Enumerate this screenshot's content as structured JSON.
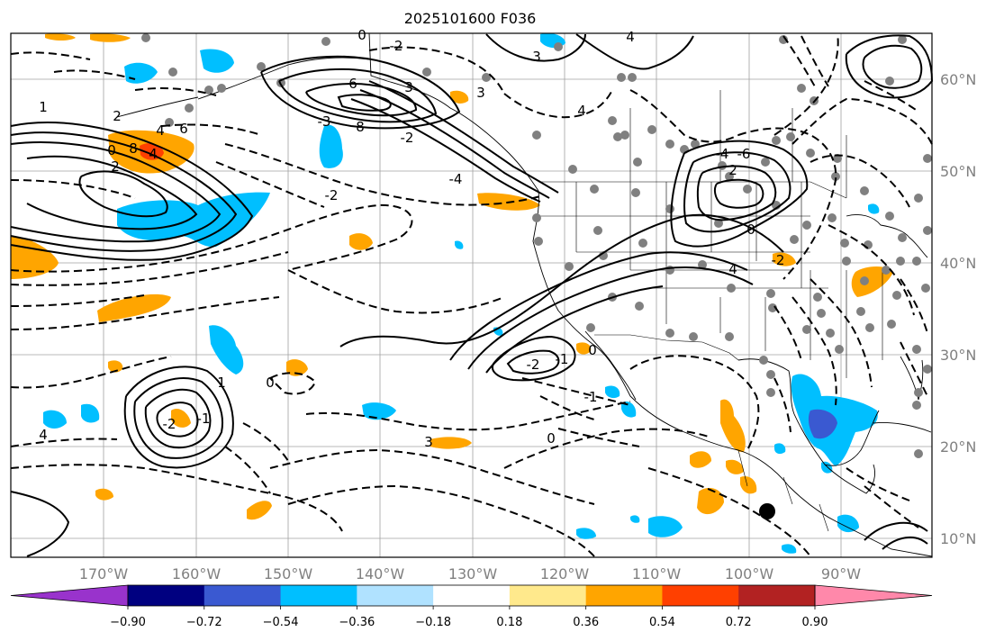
{
  "title": "2025101600 F036",
  "map": {
    "longitude_labels": [
      "170°W",
      "160°W",
      "150°W",
      "140°W",
      "130°W",
      "120°W",
      "110°W",
      "100°W",
      "90°W"
    ],
    "latitude_labels": [
      "60°N",
      "50°N",
      "40°N",
      "30°N",
      "20°N",
      "10°N"
    ],
    "contour_labels": [
      "0",
      "-2",
      "1",
      "2",
      "4",
      "6",
      "8",
      "0",
      "4",
      "2",
      "-2",
      "3",
      "4",
      "-4",
      "3",
      "4",
      "6",
      "8",
      "-2",
      "3",
      "-3",
      "-4",
      "-6",
      "2",
      "0",
      "-2",
      "4",
      "-2",
      "-1",
      "0",
      "-1",
      "0",
      "-2",
      "1",
      "-1",
      "0",
      "3",
      "4"
    ],
    "colors": {
      "ocean": "#ffffff",
      "contour": "#000000",
      "grid": "#a0a0a0",
      "station_dots": "#808080",
      "neg_strong": "#00bfff",
      "neg_stronger": "#3a59d1",
      "pos_weak": "#ffa500",
      "pos_strong": "#ff4000"
    }
  },
  "colorbar": {
    "tick_labels": [
      "−0.90",
      "−0.72",
      "−0.54",
      "−0.36",
      "−0.18",
      "0.18",
      "0.36",
      "0.54",
      "0.72",
      "0.90"
    ],
    "colors": [
      "#9933cc",
      "#000080",
      "#3a59d1",
      "#00bfff",
      "#b0e2ff",
      "#ffffff",
      "#ffe98c",
      "#ffa500",
      "#ff4000",
      "#b22222",
      "#ff88aa"
    ]
  }
}
